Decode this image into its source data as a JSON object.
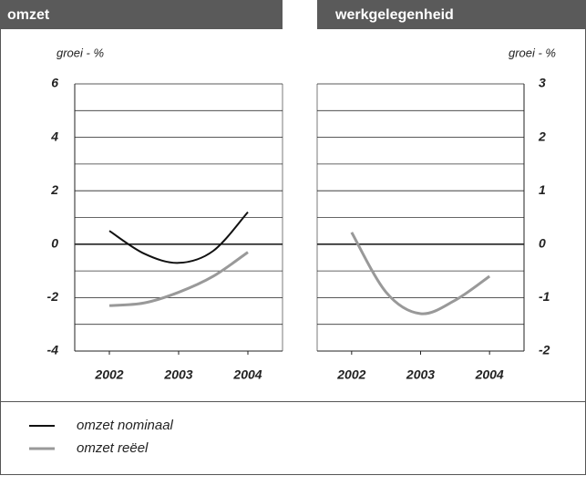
{
  "chart_data": [
    {
      "type": "line",
      "title": "omzet",
      "ylabel": "groei - %",
      "y_axis_side": "left",
      "xlim": [
        2001.5,
        2004.5
      ],
      "xticks": [
        2002,
        2003,
        2004
      ],
      "ylim": [
        -4,
        6
      ],
      "yticks": [
        6,
        4,
        2,
        0,
        -2,
        -4
      ],
      "minor_yticks": [
        5,
        3,
        1,
        -1,
        -3,
        -5
      ],
      "x": [
        2002,
        2002.5,
        2003,
        2003.5,
        2004
      ],
      "series": [
        {
          "name": "omzet nominaal",
          "color": "#111111",
          "values": [
            0.5,
            -0.35,
            -0.7,
            -0.25,
            1.2
          ]
        },
        {
          "name": "omzet reëel",
          "color": "#999999",
          "values": [
            -2.3,
            -2.2,
            -1.8,
            -1.2,
            -0.3
          ]
        }
      ]
    },
    {
      "type": "line",
      "title": "werkgelegenheid",
      "ylabel": "groei - %",
      "y_axis_side": "right",
      "xlim": [
        2001.5,
        2004.5
      ],
      "xticks": [
        2002,
        2003,
        2004
      ],
      "ylim": [
        -2,
        3
      ],
      "yticks": [
        3,
        2,
        1,
        0,
        -1,
        -2
      ],
      "minor_yticks": [
        2.5,
        1.5,
        0.5,
        -0.5,
        -1.5
      ],
      "x": [
        2002,
        2002.5,
        2003,
        2003.5,
        2004
      ],
      "series": [
        {
          "color": "#999999",
          "values": [
            0.22,
            -0.9,
            -1.3,
            -1.05,
            -0.6
          ]
        }
      ]
    }
  ]
}
